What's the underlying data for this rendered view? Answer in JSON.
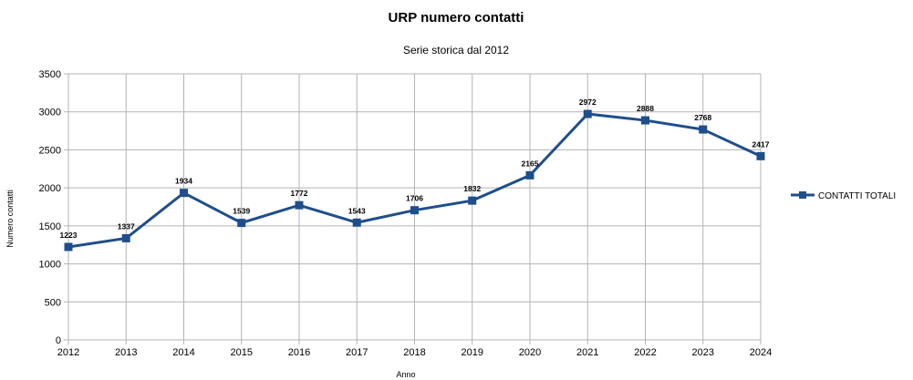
{
  "chart_data": {
    "type": "line",
    "title": "URP numero contatti",
    "subtitle": "Serie storica dal 2012",
    "xlabel": "Anno",
    "ylabel": "Numero contatti",
    "x": [
      "2012",
      "2013",
      "2014",
      "2015",
      "2016",
      "2017",
      "2018",
      "2019",
      "2020",
      "2021",
      "2022",
      "2023",
      "2024"
    ],
    "y_ticks": [
      "0",
      "500",
      "1000",
      "1500",
      "2000",
      "2500",
      "3000",
      "3500"
    ],
    "ylim": [
      0,
      3500
    ],
    "grid": true,
    "legend_position": "right",
    "series": [
      {
        "name": "CONTATTI TOTALI",
        "color": "#1f4e8c",
        "values": [
          1223,
          1337,
          1934,
          1539,
          1772,
          1543,
          1706,
          1832,
          2165,
          2972,
          2888,
          2768,
          2417
        ],
        "labels": [
          "1223",
          "1337",
          "1934",
          "1539",
          "1772",
          "1543",
          "1706",
          "1832",
          "2165",
          "2972",
          "2888",
          "2768",
          "2417"
        ]
      }
    ]
  }
}
